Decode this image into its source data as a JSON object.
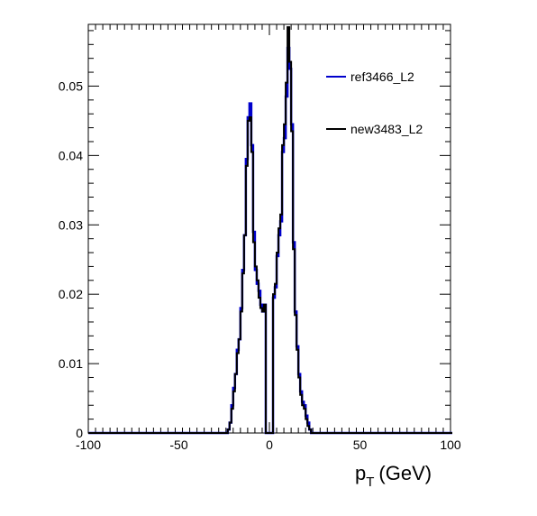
{
  "chart_data": {
    "type": "line",
    "xlabel": "p_T (GeV)",
    "ylabel": "",
    "xlim": [
      -100,
      100
    ],
    "ylim": [
      0,
      0.0589
    ],
    "x_ticks": [
      -100,
      -50,
      0,
      50,
      100
    ],
    "y_ticks": [
      0,
      0.01,
      0.02,
      0.03,
      0.04,
      0.05
    ],
    "x_tick_labels": [
      "-100",
      "-50",
      "0",
      "50",
      "100"
    ],
    "y_tick_labels": [
      "0",
      "0.01",
      "0.02",
      "0.03",
      "0.04",
      "0.05"
    ],
    "axis_title_main": "p",
    "axis_title_sub": "T",
    "axis_title_unit": "(GeV)",
    "legend_position": "top-right",
    "bin_width": 1,
    "bin_start": -100,
    "series": [
      {
        "name": "ref3466_L2",
        "color": "#0000cc",
        "points": [
          [
            -100,
            0
          ],
          [
            -24,
            0
          ],
          [
            -23,
            0.0005
          ],
          [
            -22,
            0.0015
          ],
          [
            -21,
            0.004
          ],
          [
            -20,
            0.0065
          ],
          [
            -19,
            0.0085
          ],
          [
            -18,
            0.012
          ],
          [
            -17,
            0.0135
          ],
          [
            -16,
            0.018
          ],
          [
            -15,
            0.0235
          ],
          [
            -14,
            0.0285
          ],
          [
            -13,
            0.0395
          ],
          [
            -12,
            0.0455
          ],
          [
            -11,
            0.0475
          ],
          [
            -10,
            0.0415
          ],
          [
            -9,
            0.029
          ],
          [
            -8,
            0.0235
          ],
          [
            -7,
            0.0215
          ],
          [
            -6,
            0.0205
          ],
          [
            -5,
            0.0185
          ],
          [
            -4,
            0.0175
          ],
          [
            -3,
            0.0185
          ],
          [
            -2,
            0.0
          ],
          [
            -1,
            0.0
          ],
          [
            0,
            0.0
          ],
          [
            1,
            0.0
          ],
          [
            2,
            0.0195
          ],
          [
            3,
            0.021
          ],
          [
            4,
            0.0255
          ],
          [
            5,
            0.0285
          ],
          [
            6,
            0.0305
          ],
          [
            7,
            0.0405
          ],
          [
            8,
            0.0425
          ],
          [
            9,
            0.0485
          ],
          [
            10,
            0.0555
          ],
          [
            11,
            0.0525
          ],
          [
            12,
            0.0445
          ],
          [
            13,
            0.0275
          ],
          [
            14,
            0.0175
          ],
          [
            15,
            0.0125
          ],
          [
            16,
            0.0085
          ],
          [
            17,
            0.006
          ],
          [
            18,
            0.0045
          ],
          [
            19,
            0.004
          ],
          [
            20,
            0.0025
          ],
          [
            21,
            0.0015
          ],
          [
            22,
            0.0005
          ],
          [
            23,
            0
          ],
          [
            100,
            0
          ]
        ]
      },
      {
        "name": "new3483_L2",
        "color": "#000000",
        "points": [
          [
            -100,
            0
          ],
          [
            -24,
            0
          ],
          [
            -23,
            0.0005
          ],
          [
            -22,
            0.0015
          ],
          [
            -21,
            0.0035
          ],
          [
            -20,
            0.006
          ],
          [
            -19,
            0.0085
          ],
          [
            -18,
            0.0115
          ],
          [
            -17,
            0.0135
          ],
          [
            -16,
            0.0175
          ],
          [
            -15,
            0.023
          ],
          [
            -14,
            0.0285
          ],
          [
            -13,
            0.0385
          ],
          [
            -12,
            0.045
          ],
          [
            -11,
            0.0455
          ],
          [
            -10,
            0.0405
          ],
          [
            -9,
            0.0275
          ],
          [
            -8,
            0.024
          ],
          [
            -7,
            0.022
          ],
          [
            -6,
            0.0195
          ],
          [
            -5,
            0.018
          ],
          [
            -4,
            0.0175
          ],
          [
            -3,
            0.0185
          ],
          [
            -2,
            0.0
          ],
          [
            -1,
            0.0
          ],
          [
            0,
            0.0
          ],
          [
            1,
            0.0
          ],
          [
            2,
            0.02
          ],
          [
            3,
            0.0215
          ],
          [
            4,
            0.026
          ],
          [
            5,
            0.0295
          ],
          [
            6,
            0.0315
          ],
          [
            7,
            0.0415
          ],
          [
            8,
            0.0445
          ],
          [
            9,
            0.0505
          ],
          [
            10,
            0.0585
          ],
          [
            11,
            0.0535
          ],
          [
            12,
            0.0435
          ],
          [
            13,
            0.0265
          ],
          [
            14,
            0.017
          ],
          [
            15,
            0.012
          ],
          [
            16,
            0.008
          ],
          [
            17,
            0.0055
          ],
          [
            18,
            0.004
          ],
          [
            19,
            0.0035
          ],
          [
            20,
            0.002
          ],
          [
            21,
            0.001
          ],
          [
            22,
            0.0005
          ],
          [
            23,
            0
          ],
          [
            100,
            0
          ]
        ]
      }
    ]
  }
}
